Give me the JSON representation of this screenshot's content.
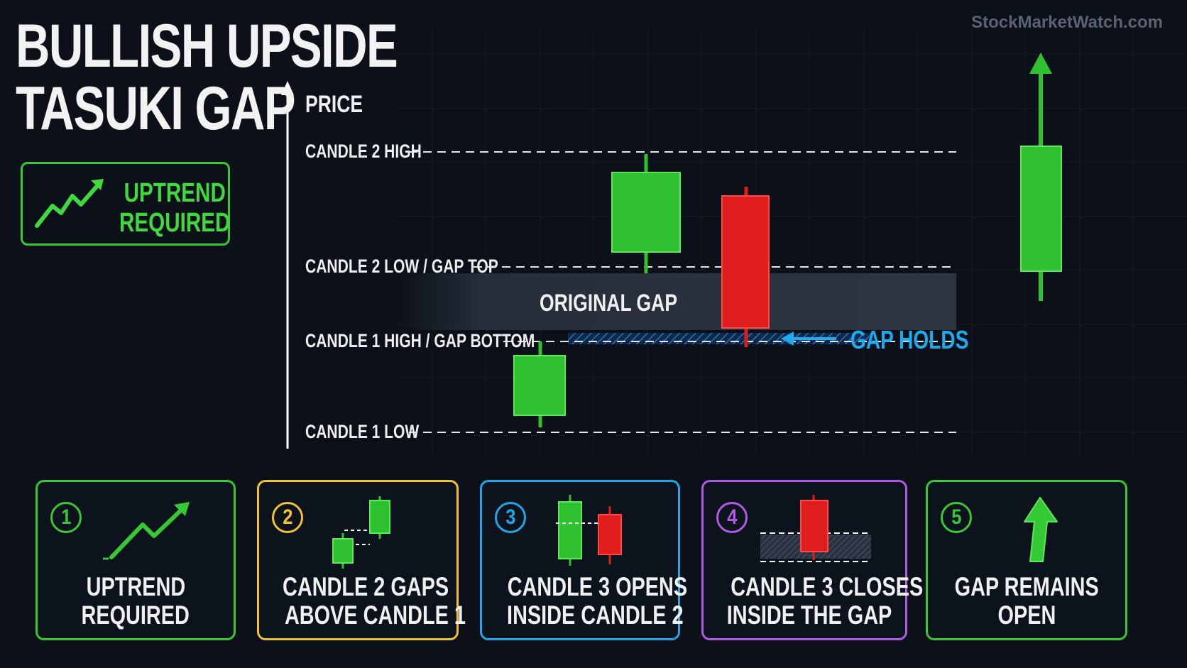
{
  "title": {
    "line1": "BULLISH UPSIDE",
    "line2": "TASUKI GAP"
  },
  "watermark": "StockMarketWatch.com",
  "uptrend_badge": {
    "line1": "UPTREND",
    "line2": "REQUIRED",
    "icon": "trend-up-icon"
  },
  "chart": {
    "axis_label": "PRICE",
    "levels": [
      {
        "id": "candle-2-high",
        "label": "CANDLE 2 HIGH"
      },
      {
        "id": "candle-2-low-gap-top",
        "label": "CANDLE 2 LOW / GAP TOP"
      },
      {
        "id": "candle-1-high-gap-bottom",
        "label": "CANDLE 1 HIGH / GAP BOTTOM"
      },
      {
        "id": "candle-1-low",
        "label": "CANDLE 1 LOW"
      }
    ],
    "gap_label": "ORIGINAL GAP",
    "gap_holds_label": "GAP HOLDS",
    "candles": [
      {
        "name": "candle-1",
        "color": "green"
      },
      {
        "name": "candle-2",
        "color": "green"
      },
      {
        "name": "candle-3",
        "color": "red"
      },
      {
        "name": "continuation-candle",
        "color": "green"
      }
    ]
  },
  "steps": [
    {
      "num": "1",
      "line1": "UPTREND",
      "line2": "REQUIRED",
      "color": "#35c935",
      "icon": "trend-up-icon"
    },
    {
      "num": "2",
      "line1": "CANDLE 2 GAPS",
      "line2": "ABOVE CANDLE 1",
      "color": "#f2c12e",
      "icon": "gap-candles-icon"
    },
    {
      "num": "3",
      "line1": "CANDLE 3 OPENS",
      "line2": "INSIDE CANDLE 2",
      "color": "#1ea7ea",
      "icon": "open-inside-icon"
    },
    {
      "num": "4",
      "line1": "CANDLE 3 CLOSES",
      "line2": "INSIDE THE GAP",
      "color": "#b259e6",
      "icon": "close-in-gap-icon"
    },
    {
      "num": "5",
      "line1": "GAP REMAINS",
      "line2": "OPEN",
      "color": "#35c935",
      "icon": "arrow-up-icon"
    }
  ],
  "colors": {
    "green": "#2fc12f",
    "red": "#e01d1d",
    "blue": "#1fa9ef",
    "background": "#0b1019"
  }
}
